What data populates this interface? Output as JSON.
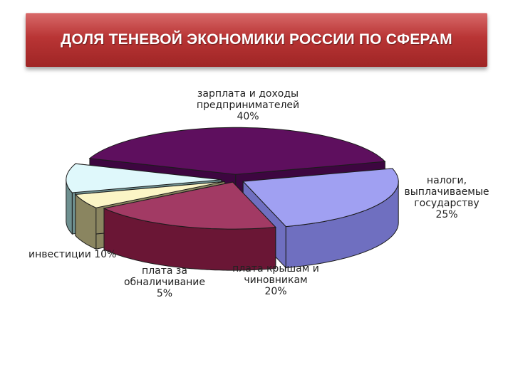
{
  "title": "ДОЛЯ ТЕНЕВОЙ ЭКОНОМИКИ РОССИИ ПО СФЕРАМ",
  "chart_data": {
    "type": "pie",
    "title": "ДОЛЯ ТЕНЕВОЙ ЭКОНОМИКИ РОССИИ ПО СФЕРАМ",
    "style": "3d-exploded",
    "slices": [
      {
        "label_lines": [
          "зарплата и доходы",
          "предпринимателей"
        ],
        "value_text": "40%",
        "value": 40,
        "color": "#5e0f5e",
        "side_color": "#3d0640"
      },
      {
        "label_lines": [
          "налоги,",
          "выплачиваемые",
          "государству"
        ],
        "value_text": "25%",
        "value": 25,
        "color": "#a0a0f2",
        "side_color": "#6f6fc0"
      },
      {
        "label_lines": [
          "плата крышам и",
          "чиновникам"
        ],
        "value_text": "20%",
        "value": 20,
        "color": "#a23a64",
        "side_color": "#6a1635"
      },
      {
        "label_lines": [
          "плата за",
          "обналичивание"
        ],
        "value_text": "5%",
        "value": 5,
        "color": "#fbf5c6",
        "side_color": "#8a8560"
      },
      {
        "label_lines": [
          "инвестиции 10%"
        ],
        "value_text": "",
        "value": 10,
        "color": "#dff8fb",
        "side_color": "#6e9090"
      }
    ]
  }
}
